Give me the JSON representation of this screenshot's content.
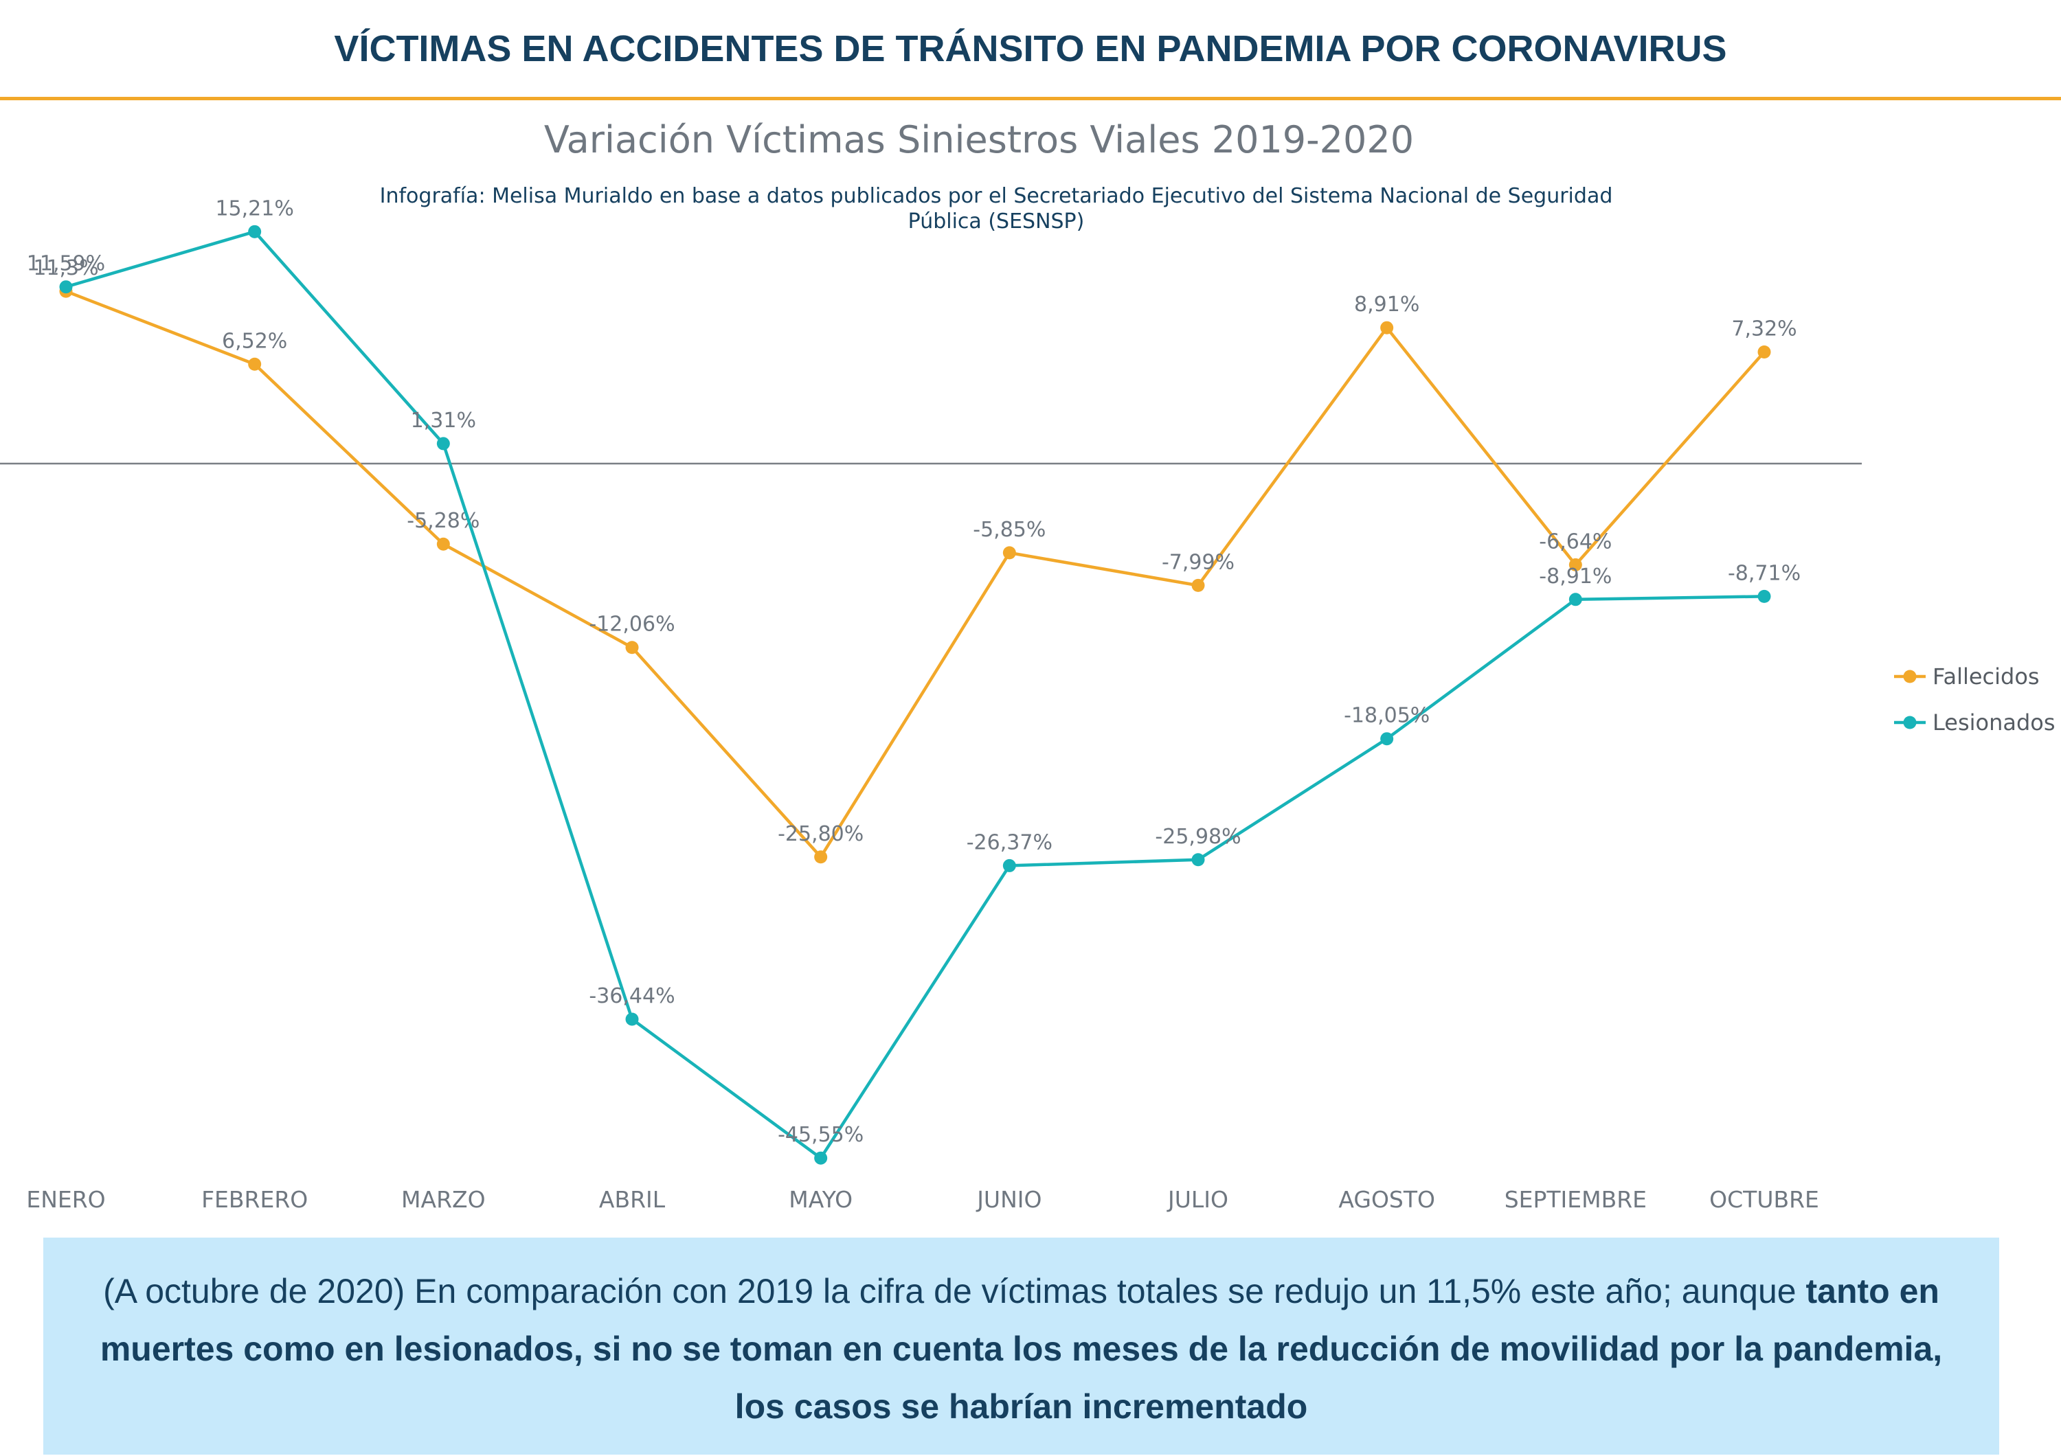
{
  "header": {
    "title": "VÍCTIMAS EN ACCIDENTES DE TRÁNSITO EN PANDEMIA POR CORONAVIRUS"
  },
  "colors": {
    "accent_rule": "#f2a82a",
    "title": "#16405f",
    "footer_bg": "#c7e9fb"
  },
  "chart_data": {
    "type": "line",
    "title": "Variación Víctimas Siniestros Viales 2019-2020",
    "subtitle_line1": "Infografía: Melisa Murialdo en base a datos publicados por el Secretariado Ejecutivo del Sistema Nacional de Seguridad",
    "subtitle_line2": "Pública (SESNSP)",
    "categories": [
      "ENERO",
      "FEBRERO",
      "MARZO",
      "ABRIL",
      "MAYO",
      "JUNIO",
      "JULIO",
      "AGOSTO",
      "SEPTIEMBRE",
      "OCTUBRE"
    ],
    "series": [
      {
        "name": "Fallecidos",
        "color": "#f2a82a",
        "values": [
          11.3,
          6.52,
          -5.28,
          -12.06,
          -25.8,
          -5.85,
          -7.99,
          8.91,
          -6.64,
          7.32
        ],
        "labels": [
          "11,3%",
          "6,52%",
          "-5,28%",
          "-12,06%",
          "-25,80%",
          "-5,85%",
          "-7,99%",
          "8,91%",
          "-6,64%",
          "7,32%"
        ]
      },
      {
        "name": "Lesionados",
        "color": "#18b3b8",
        "values": [
          11.59,
          15.21,
          1.31,
          -36.44,
          -45.55,
          -26.37,
          -25.98,
          -18.05,
          -8.91,
          -8.71
        ],
        "labels": [
          "11,59%",
          "15,21%",
          "1,31%",
          "-36,44%",
          "-45,55%",
          "-26,37%",
          "-25,98%",
          "-18,05%",
          "-8,91%",
          "-8,71%"
        ]
      }
    ],
    "ylim": [
      -50,
      20
    ],
    "zero_line": true,
    "grid": false,
    "legend_position": "right",
    "xlabel": "",
    "ylabel": ""
  },
  "footer": {
    "text_normal": "(A octubre de 2020) En comparación con 2019 la cifra de víctimas totales se redujo un 11,5% este año;  aunque ",
    "text_bold": "tanto en muertes como en lesionados, si no se toman en cuenta los meses de la reducción de movilidad por la pandemia, los casos se habrían incrementado"
  }
}
